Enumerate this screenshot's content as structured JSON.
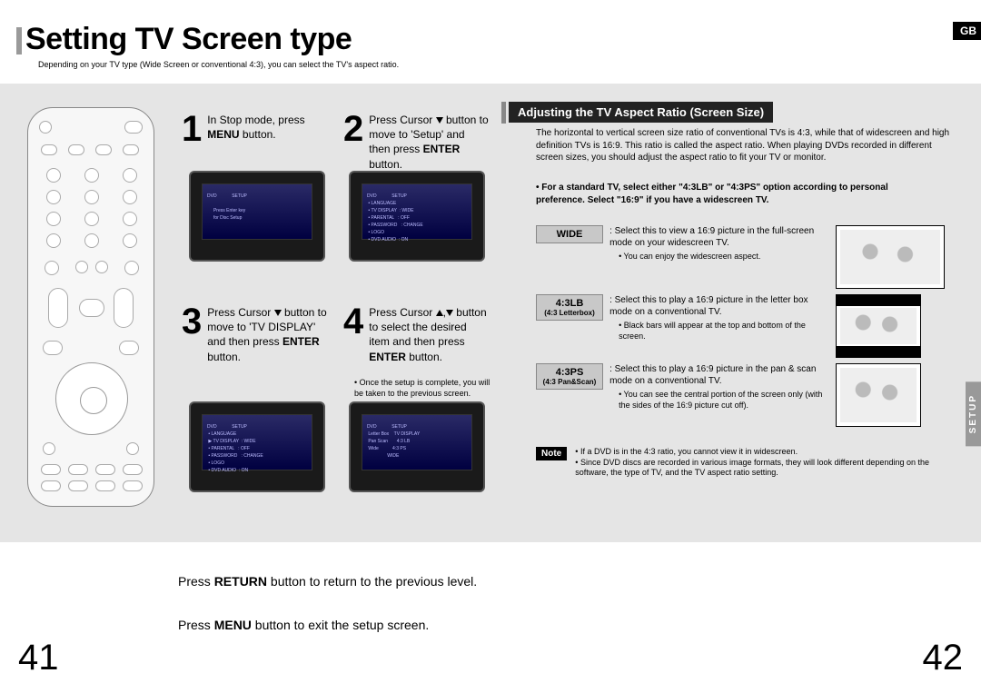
{
  "page": {
    "title": "Setting TV Screen type",
    "subtitle": "Depending on your TV type (Wide Screen or conventional 4:3), you can select the TV's aspect ratio.",
    "gb": "GB",
    "left_num": "41",
    "right_num": "42",
    "side_tab": "SETUP"
  },
  "steps": {
    "s1": {
      "num": "1",
      "html": "In Stop mode, press <b>MENU</b> button."
    },
    "s2": {
      "num": "2",
      "html": "Press Cursor <span class='tri-down'></span> button to move to 'Setup' and then press <b>ENTER</b> button."
    },
    "s3": {
      "num": "3",
      "html": "Press Cursor <span class='tri-down'></span> button to move to 'TV DISPLAY' and then press <b>ENTER</b> button."
    },
    "s4": {
      "num": "4",
      "html": "Press Cursor <span class='tri-up'></span>,<span class='tri-down'></span> button to select the desired item and then press <b>ENTER</b> button."
    },
    "note4": "• Once the setup is complete, you will be taken to the previous screen."
  },
  "section": {
    "header": "Adjusting the TV Aspect Ratio (Screen Size)",
    "body": "The horizontal to vertical screen size ratio of conventional TVs is 4:3, while that of widescreen and high definition TVs is 16:9. This ratio is called the aspect ratio. When playing DVDs recorded in different screen sizes, you should adjust the aspect ratio to fit your TV or monitor.",
    "bullet": "• For a standard TV, select either \"4:3LB\" or \"4:3PS\" option according to personal preference. Select \"16:9\" if you have a widescreen TV."
  },
  "options": {
    "wide": {
      "label": "WIDE",
      "sub": "",
      "text": ": Select this to view a 16:9 picture in the full-screen mode on your widescreen TV.",
      "note": "• You can enjoy the widescreen aspect."
    },
    "lb": {
      "label": "4:3LB",
      "sub": "(4:3 Letterbox)",
      "text": ": Select this to play a 16:9 picture in the letter box mode on a conventional TV.",
      "note": "• Black bars will appear at the top and bottom of the screen."
    },
    "ps": {
      "label": "4:3PS",
      "sub": "(4:3 Pan&Scan)",
      "text": ": Select this to play a 16:9 picture in the pan & scan mode on a conventional TV.",
      "note": "• You can see the central portion of the screen only (with the sides of the 16:9 picture cut off)."
    }
  },
  "note": {
    "badge": "Note",
    "text": "• If a DVD is in the 4:3 ratio, you cannot view it in widescreen.\n• Since DVD discs are recorded in various image formats, they will look different depending on the software, the type of TV, and the TV aspect ratio setting."
  },
  "footer": {
    "line1": "Press <b>RETURN</b> button to return to the previous level.",
    "line2": "Press <b>MENU</b> button to exit the setup screen."
  }
}
